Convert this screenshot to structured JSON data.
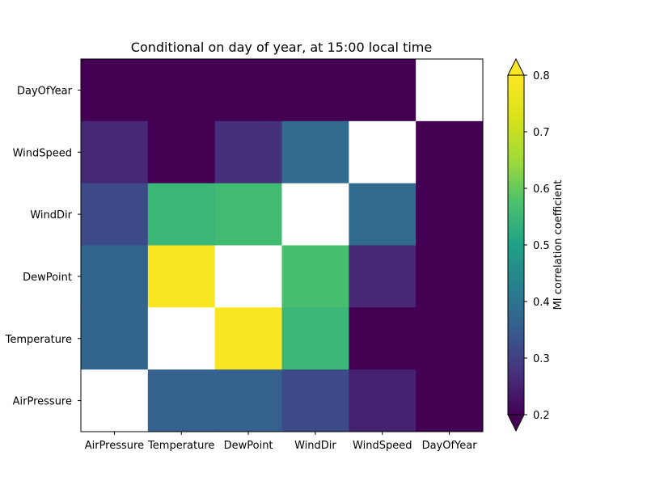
{
  "chart_data": {
    "type": "heatmap",
    "title": "Conditional on day of year, at 15:00 local time",
    "x_categories": [
      "AirPressure",
      "Temperature",
      "DewPoint",
      "WindDir",
      "WindSpeed",
      "DayOfYear"
    ],
    "y_categories_top_to_bottom": [
      "DayOfYear",
      "WindSpeed",
      "WindDir",
      "DewPoint",
      "Temperature",
      "AirPressure"
    ],
    "matrix_top_to_bottom": [
      [
        0.15,
        0.15,
        0.15,
        0.15,
        0.15,
        null
      ],
      [
        0.26,
        0.15,
        0.27,
        0.38,
        null,
        0.15
      ],
      [
        0.32,
        0.55,
        0.56,
        null,
        0.38,
        0.15
      ],
      [
        0.37,
        0.79,
        null,
        0.57,
        0.26,
        0.15
      ],
      [
        0.37,
        null,
        0.79,
        0.55,
        0.15,
        0.15
      ],
      [
        null,
        0.36,
        0.36,
        0.32,
        0.25,
        0.15
      ]
    ],
    "colorbar": {
      "label": "MI correlation coefficient",
      "vmin": 0.2,
      "vmax": 0.8,
      "ticks": [
        "0.2",
        "0.3",
        "0.4",
        "0.5",
        "0.6",
        "0.7",
        "0.8"
      ],
      "extend": "both"
    },
    "colormap": "viridis",
    "missing_color": "#ffffff"
  }
}
